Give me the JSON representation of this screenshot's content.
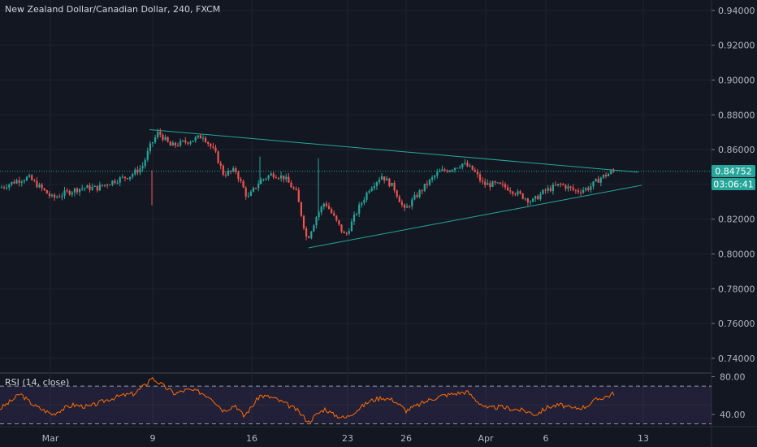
{
  "header": {
    "title": "New Zealand Dollar/Canadian Dollar, 240, FXCM"
  },
  "price_badge": {
    "price": "0.84752",
    "countdown": "03:06:41"
  },
  "chart_data": {
    "type": "candlestick",
    "title": "New Zealand Dollar/Canadian Dollar, 240, FXCM",
    "price_axis": {
      "ticks": [
        0.74,
        0.76,
        0.78,
        0.8,
        0.82,
        0.84,
        0.86,
        0.88,
        0.9,
        0.92,
        0.94
      ],
      "tick_labels": [
        "0.74000",
        "0.76000",
        "0.78000",
        "0.80000",
        "0.82000",
        "0.84000",
        "0.86000",
        "0.88000",
        "0.90000",
        "0.92000",
        "0.94000"
      ],
      "range": [
        0.732,
        0.946
      ]
    },
    "time_axis": {
      "labels": [
        "Mar",
        "9",
        "16",
        "23",
        "26",
        "Apr",
        "6",
        "13"
      ]
    },
    "last_price": 0.84752,
    "colors": {
      "up": "#26a69a",
      "down": "#ef5350",
      "trendline": "#26a69a",
      "rsi_line": "#ff6d00",
      "rsi_band": "#7e57c2",
      "background": "#131722"
    },
    "path_points": [
      [
        0,
        0.838
      ],
      [
        20,
        0.842
      ],
      [
        35,
        0.844
      ],
      [
        50,
        0.838
      ],
      [
        65,
        0.832
      ],
      [
        80,
        0.835
      ],
      [
        100,
        0.838
      ],
      [
        120,
        0.838
      ],
      [
        140,
        0.842
      ],
      [
        160,
        0.845
      ],
      [
        175,
        0.85
      ],
      [
        185,
        0.862
      ],
      [
        195,
        0.87
      ],
      [
        210,
        0.862
      ],
      [
        225,
        0.864
      ],
      [
        240,
        0.866
      ],
      [
        250,
        0.868
      ],
      [
        265,
        0.858
      ],
      [
        275,
        0.846
      ],
      [
        290,
        0.848
      ],
      [
        305,
        0.832
      ],
      [
        320,
        0.842
      ],
      [
        335,
        0.846
      ],
      [
        350,
        0.844
      ],
      [
        365,
        0.835
      ],
      [
        378,
        0.808
      ],
      [
        390,
        0.822
      ],
      [
        400,
        0.83
      ],
      [
        410,
        0.822
      ],
      [
        425,
        0.81
      ],
      [
        440,
        0.825
      ],
      [
        455,
        0.838
      ],
      [
        470,
        0.845
      ],
      [
        485,
        0.838
      ],
      [
        498,
        0.825
      ],
      [
        510,
        0.832
      ],
      [
        525,
        0.84
      ],
      [
        540,
        0.847
      ],
      [
        555,
        0.849
      ],
      [
        570,
        0.852
      ],
      [
        583,
        0.848
      ],
      [
        595,
        0.84
      ],
      [
        610,
        0.84
      ],
      [
        625,
        0.838
      ],
      [
        640,
        0.834
      ],
      [
        655,
        0.83
      ],
      [
        670,
        0.836
      ],
      [
        690,
        0.84
      ],
      [
        710,
        0.836
      ],
      [
        725,
        0.838
      ],
      [
        740,
        0.844
      ],
      [
        755,
        0.8475
      ]
    ],
    "rsi": {
      "label": "RSI (14, close)",
      "levels": [
        70,
        30
      ],
      "axis_ticks": [
        80,
        40
      ],
      "tick_labels": [
        "80.00",
        "40.00"
      ],
      "range": [
        27,
        83
      ],
      "path_points": [
        [
          0,
          46
        ],
        [
          15,
          55
        ],
        [
          25,
          62
        ],
        [
          35,
          54
        ],
        [
          45,
          48
        ],
        [
          55,
          44
        ],
        [
          65,
          40
        ],
        [
          75,
          45
        ],
        [
          90,
          50
        ],
        [
          110,
          48
        ],
        [
          130,
          55
        ],
        [
          150,
          60
        ],
        [
          165,
          62
        ],
        [
          180,
          72
        ],
        [
          186,
          79
        ],
        [
          195,
          74
        ],
        [
          205,
          68
        ],
        [
          215,
          62
        ],
        [
          230,
          66
        ],
        [
          245,
          64
        ],
        [
          260,
          58
        ],
        [
          275,
          44
        ],
        [
          290,
          50
        ],
        [
          300,
          38
        ],
        [
          310,
          48
        ],
        [
          320,
          60
        ],
        [
          335,
          58
        ],
        [
          350,
          52
        ],
        [
          365,
          45
        ],
        [
          380,
          32
        ],
        [
          390,
          40
        ],
        [
          400,
          46
        ],
        [
          410,
          40
        ],
        [
          425,
          36
        ],
        [
          440,
          45
        ],
        [
          455,
          54
        ],
        [
          470,
          58
        ],
        [
          485,
          55
        ],
        [
          500,
          44
        ],
        [
          515,
          50
        ],
        [
          530,
          56
        ],
        [
          545,
          60
        ],
        [
          560,
          62
        ],
        [
          575,
          64
        ],
        [
          585,
          56
        ],
        [
          600,
          46
        ],
        [
          615,
          48
        ],
        [
          630,
          46
        ],
        [
          645,
          44
        ],
        [
          660,
          40
        ],
        [
          675,
          48
        ],
        [
          690,
          50
        ],
        [
          705,
          46
        ],
        [
          720,
          48
        ],
        [
          735,
          56
        ],
        [
          750,
          60
        ],
        [
          757,
          63
        ]
      ]
    }
  }
}
